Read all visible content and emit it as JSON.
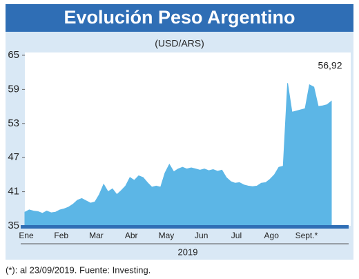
{
  "chart_data": {
    "type": "area",
    "title": "Evolución Peso Argentino",
    "subtitle": "(USD/ARS)",
    "categories": [
      "Ene",
      null,
      null,
      null,
      null,
      null,
      null,
      null,
      "Feb",
      null,
      null,
      null,
      null,
      null,
      null,
      null,
      "Mar",
      null,
      null,
      null,
      null,
      null,
      null,
      null,
      "Abr",
      null,
      null,
      null,
      null,
      null,
      null,
      null,
      "May",
      null,
      null,
      null,
      null,
      null,
      null,
      null,
      "Jun",
      null,
      null,
      null,
      null,
      null,
      null,
      null,
      "Jul",
      null,
      null,
      null,
      null,
      null,
      null,
      null,
      "Ago",
      null,
      null,
      null,
      null,
      null,
      null,
      null,
      "Sept.*",
      null,
      null,
      null,
      null,
      null,
      null
    ],
    "values": [
      37.4,
      37.8,
      37.6,
      37.5,
      37.2,
      37.6,
      37.3,
      37.4,
      37.8,
      38.0,
      38.3,
      38.8,
      39.5,
      39.8,
      39.4,
      39.0,
      39.2,
      40.5,
      42.3,
      41.0,
      41.5,
      40.5,
      41.2,
      42.0,
      43.5,
      43.0,
      43.8,
      43.5,
      42.6,
      41.8,
      42.0,
      41.8,
      44.3,
      45.8,
      44.5,
      45.0,
      45.3,
      45.0,
      45.2,
      45.0,
      44.8,
      45.0,
      44.7,
      44.9,
      44.6,
      44.8,
      43.5,
      42.8,
      42.5,
      42.6,
      42.2,
      42.0,
      41.9,
      42.0,
      42.5,
      42.6,
      43.2,
      44.0,
      45.3,
      45.5,
      60.1,
      55.0,
      55.2,
      55.4,
      55.6,
      59.8,
      59.4,
      56.0,
      56.1,
      56.3,
      56.92
    ],
    "color": "#5cb6e6",
    "annotation": "56,92",
    "x_axis_label": "2019",
    "ylim": [
      35,
      65
    ],
    "yticks": [
      35,
      41,
      47,
      53,
      59,
      65
    ],
    "footnote": "(*): al 23/09/2019. Fuente: Investing."
  }
}
